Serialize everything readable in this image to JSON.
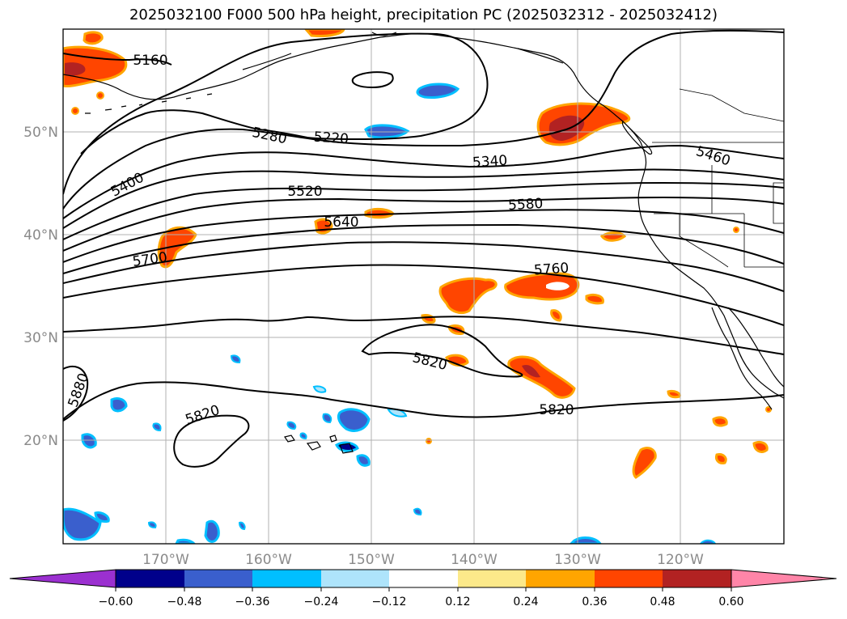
{
  "title": "2025032100 F000 500 hPa height, precipitation PC (2025032312 - 2025032412)",
  "lat_labels": [
    "50°N",
    "40°N",
    "30°N",
    "20°N"
  ],
  "lon_labels": [
    "170°W",
    "160°W",
    "150°W",
    "140°W",
    "130°W",
    "120°W"
  ],
  "contour_labels": [
    "5160",
    "5220",
    "5280",
    "5340",
    "5400",
    "5460",
    "5520",
    "5580",
    "5640",
    "5700",
    "5760",
    "5820",
    "5820",
    "5820",
    "5880"
  ],
  "colorbar": {
    "ticks": [
      "−0.60",
      "−0.48",
      "−0.36",
      "−0.24",
      "−0.12",
      "0.12",
      "0.24",
      "0.36",
      "0.48",
      "0.60"
    ],
    "colors": [
      "#9b30d0",
      "#00008b",
      "#3a5fcd",
      "#00bfff",
      "#aee4fb",
      "#ffffff",
      "#fce98a",
      "#ffa500",
      "#ff4500",
      "#b22222",
      "#ff85a8"
    ]
  },
  "colors": {
    "contour": "#000000",
    "grid": "#b0b0b0",
    "coast": "#000000"
  }
}
